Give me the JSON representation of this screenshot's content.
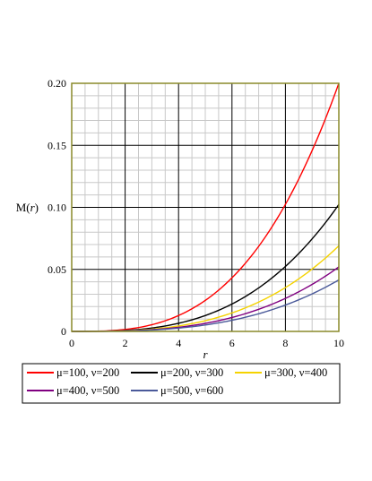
{
  "chart_data": {
    "type": "line",
    "title": "",
    "xlabel": "r",
    "ylabel": "M(r)",
    "xlim": [
      0,
      10
    ],
    "ylim": [
      0,
      0.2
    ],
    "xticks": [
      "0",
      "2",
      "4",
      "6",
      "8",
      "10"
    ],
    "yticks": [
      "0",
      "0.05",
      "0.10",
      "0.15",
      "0.20"
    ],
    "grid": true,
    "legend_position": "bottom",
    "x": [
      0,
      1,
      2,
      3,
      4,
      5,
      6,
      7,
      8,
      9,
      10
    ],
    "series": [
      {
        "name": "μ=100, ν=200",
        "color": "#ff0000",
        "values": [
          0,
          0.0002,
          0.0016,
          0.0054,
          0.0128,
          0.025,
          0.0432,
          0.0686,
          0.1024,
          0.1458,
          0.2
        ]
      },
      {
        "name": "μ=200, ν=300",
        "color": "#000000",
        "values": [
          0,
          0.0001,
          0.0008,
          0.0028,
          0.0066,
          0.0128,
          0.0221,
          0.0351,
          0.0524,
          0.0746,
          0.1023
        ]
      },
      {
        "name": "μ=300, ν=400",
        "color": "#f5d300",
        "values": [
          0,
          0.0001,
          0.0005,
          0.0018,
          0.0044,
          0.0086,
          0.0149,
          0.0237,
          0.0354,
          0.0504,
          0.069
        ]
      },
      {
        "name": "μ=400, ν=500",
        "color": "#800080",
        "values": [
          0,
          0.0001,
          0.0004,
          0.0014,
          0.0033,
          0.0065,
          0.0112,
          0.0178,
          0.0266,
          0.0379,
          0.052
        ]
      },
      {
        "name": "μ=500, ν=600",
        "color": "#4b5a9a",
        "values": [
          0,
          0.0,
          0.0003,
          0.0011,
          0.0027,
          0.0052,
          0.009,
          0.0143,
          0.0213,
          0.0303,
          0.0415
        ]
      }
    ]
  }
}
